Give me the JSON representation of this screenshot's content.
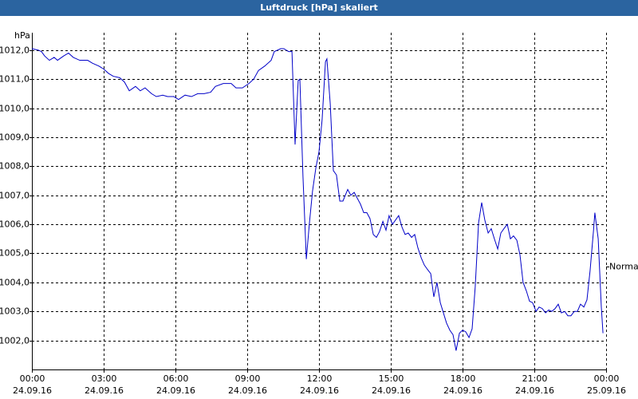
{
  "chart_data": {
    "type": "line",
    "title": "Luftdruck [hPa] skaliert",
    "y_unit": "hPa",
    "x": [
      0,
      0.27,
      0.4,
      0.53,
      0.73,
      0.93,
      1.07,
      1.33,
      1.53,
      1.73,
      2,
      2.33,
      2.53,
      2.8,
      3,
      3.2,
      3.4,
      3.67,
      3.87,
      4.07,
      4.33,
      4.53,
      4.73,
      5,
      5.2,
      5.47,
      5.67,
      5.93,
      6.13,
      6.4,
      6.67,
      6.93,
      7.2,
      7.47,
      7.67,
      8,
      8.33,
      8.53,
      8.8,
      9.07,
      9.27,
      9.47,
      9.73,
      10,
      10.13,
      10.4,
      10.53,
      10.73,
      10.87,
      11,
      11.13,
      11.2,
      11.33,
      11.47,
      11.6,
      11.73,
      11.87,
      12,
      12.13,
      12.27,
      12.33,
      12.47,
      12.6,
      12.73,
      12.87,
      13,
      13.2,
      13.33,
      13.47,
      13.6,
      13.73,
      13.87,
      14,
      14.13,
      14.27,
      14.4,
      14.53,
      14.67,
      14.8,
      14.93,
      15.07,
      15.2,
      15.33,
      15.47,
      15.6,
      15.73,
      15.87,
      16,
      16.13,
      16.27,
      16.4,
      16.53,
      16.67,
      16.8,
      16.93,
      17.07,
      17.2,
      17.33,
      17.47,
      17.6,
      17.73,
      17.87,
      18,
      18.13,
      18.27,
      18.4,
      18.53,
      18.67,
      18.8,
      18.93,
      19.07,
      19.2,
      19.33,
      19.47,
      19.6,
      19.73,
      19.87,
      20,
      20.13,
      20.27,
      20.4,
      20.53,
      20.67,
      20.8,
      20.93,
      21.07,
      21.2,
      21.33,
      21.47,
      21.6,
      21.73,
      21.87,
      22,
      22.13,
      22.27,
      22.4,
      22.53,
      22.67,
      22.8,
      22.93,
      23.07,
      23.2,
      23.33,
      23.47,
      23.53,
      23.67,
      23.8,
      23.87
    ],
    "series": [
      {
        "color": "#0000c8",
        "values": [
          1012.05,
          1012.0,
          1011.95,
          1011.8,
          1011.65,
          1011.75,
          1011.65,
          1011.8,
          1011.9,
          1011.75,
          1011.65,
          1011.65,
          1011.55,
          1011.45,
          1011.35,
          1011.2,
          1011.1,
          1011.05,
          1010.9,
          1010.6,
          1010.75,
          1010.6,
          1010.7,
          1010.5,
          1010.4,
          1010.45,
          1010.4,
          1010.4,
          1010.3,
          1010.45,
          1010.4,
          1010.5,
          1010.5,
          1010.55,
          1010.75,
          1010.85,
          1010.85,
          1010.7,
          1010.7,
          1010.85,
          1011.0,
          1011.3,
          1011.45,
          1011.65,
          1011.95,
          1012.05,
          1012.05,
          1011.95,
          1011.95,
          1008.75,
          1010.95,
          1011.0,
          1007.65,
          1004.8,
          1006.05,
          1007.15,
          1007.95,
          1008.5,
          1009.6,
          1011.6,
          1011.7,
          1010.15,
          1007.85,
          1007.7,
          1006.8,
          1006.8,
          1007.2,
          1007.0,
          1007.1,
          1006.9,
          1006.7,
          1006.4,
          1006.4,
          1006.2,
          1005.65,
          1005.55,
          1005.75,
          1006.1,
          1005.8,
          1006.3,
          1006.0,
          1006.15,
          1006.3,
          1005.9,
          1005.65,
          1005.7,
          1005.55,
          1005.65,
          1005.2,
          1004.85,
          1004.6,
          1004.45,
          1004.3,
          1003.5,
          1004.0,
          1003.3,
          1002.95,
          1002.6,
          1002.35,
          1002.2,
          1001.65,
          1002.25,
          1002.35,
          1002.3,
          1002.1,
          1002.4,
          1003.85,
          1006.05,
          1006.75,
          1006.15,
          1005.7,
          1005.85,
          1005.5,
          1005.15,
          1005.7,
          1005.85,
          1006.0,
          1005.5,
          1005.6,
          1005.45,
          1004.95,
          1004.0,
          1003.7,
          1003.35,
          1003.3,
          1003.0,
          1003.15,
          1003.1,
          1002.95,
          1003.05,
          1003.0,
          1003.1,
          1003.25,
          1002.95,
          1003.0,
          1002.85,
          1002.85,
          1003.0,
          1003.0,
          1003.25,
          1003.15,
          1003.4,
          1004.4,
          1005.75,
          1006.4,
          1005.5,
          1003.15,
          1002.25
        ]
      }
    ],
    "xlim": [
      0,
      24
    ],
    "xticks": [
      {
        "value": 0,
        "label": "00:00",
        "date": "24.09.16"
      },
      {
        "value": 3,
        "label": "03:00",
        "date": "24.09.16"
      },
      {
        "value": 6,
        "label": "06:00",
        "date": "24.09.16"
      },
      {
        "value": 9,
        "label": "09:00",
        "date": "24.09.16"
      },
      {
        "value": 12,
        "label": "12:00",
        "date": "24.09.16"
      },
      {
        "value": 15,
        "label": "15:00",
        "date": "24.09.16"
      },
      {
        "value": 18,
        "label": "18:00",
        "date": "24.09.16"
      },
      {
        "value": 21,
        "label": "21:00",
        "date": "24.09.16"
      },
      {
        "value": 24,
        "label": "00:00",
        "date": "25.09.16"
      }
    ],
    "ylim": [
      1001.0,
      1012.6
    ],
    "yticks": [
      {
        "value": 1002,
        "label": "1002,0"
      },
      {
        "value": 1003,
        "label": "1003,0"
      },
      {
        "value": 1004,
        "label": "1004,0"
      },
      {
        "value": 1005,
        "label": "1005,0"
      },
      {
        "value": 1006,
        "label": "1006,0"
      },
      {
        "value": 1007,
        "label": "1007,0"
      },
      {
        "value": 1008,
        "label": "1008,0"
      },
      {
        "value": 1009,
        "label": "1009,0"
      },
      {
        "value": 1010,
        "label": "1010,0"
      },
      {
        "value": 1011,
        "label": "1011,0"
      },
      {
        "value": 1012,
        "label": "1012,0"
      }
    ],
    "normal": {
      "label": "Normal",
      "value": 1004.55
    },
    "grid": true
  }
}
